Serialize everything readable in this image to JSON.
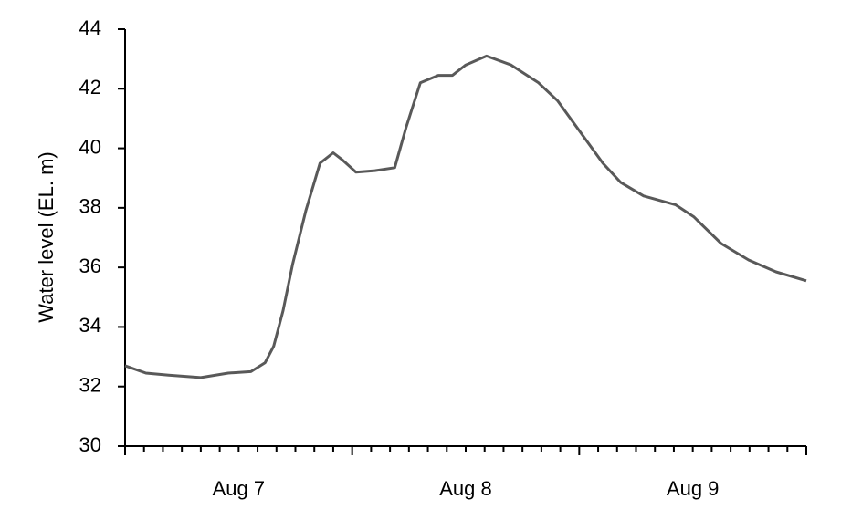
{
  "chart_data": {
    "type": "line",
    "y_label": "Water level (EL. m)",
    "xlim": [
      0,
      72
    ],
    "xticks": [
      {
        "value": 12,
        "label": "Aug 7"
      },
      {
        "value": 36,
        "label": "Aug 8"
      },
      {
        "value": 60,
        "label": "Aug 9"
      }
    ],
    "ylim": [
      30,
      44
    ],
    "yticks": [
      30,
      32,
      34,
      36,
      38,
      40,
      42,
      44
    ],
    "grid": false,
    "series": [
      {
        "color": "#595959",
        "x": [
          0,
          2.2,
          4.6,
          8,
          10.9,
          13.3,
          14.8,
          15.7,
          16.7,
          17.7,
          19.1,
          20.6,
          22,
          23,
          24.4,
          26.4,
          28.5,
          29.7,
          31.2,
          33.1,
          34.6,
          36,
          38.2,
          40.8,
          43.7,
          45.7,
          48.1,
          50.5,
          52.4,
          54.8,
          58.2,
          60.1,
          63,
          65.9,
          68.8,
          72
        ],
        "values": [
          32.7,
          32.45,
          32.38,
          32.3,
          32.45,
          32.5,
          32.8,
          33.35,
          34.55,
          36.1,
          37.9,
          39.5,
          39.85,
          39.6,
          39.2,
          39.25,
          39.35,
          40.7,
          42.2,
          42.45,
          42.45,
          42.8,
          43.1,
          42.8,
          42.2,
          41.6,
          40.55,
          39.5,
          38.85,
          38.4,
          38.1,
          37.7,
          36.8,
          36.25,
          35.85,
          35.55
        ]
      }
    ]
  }
}
